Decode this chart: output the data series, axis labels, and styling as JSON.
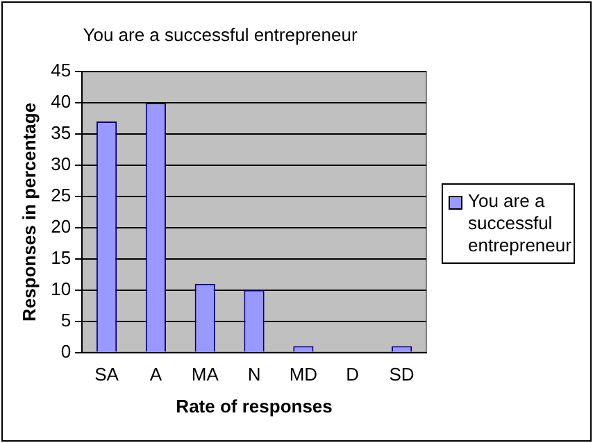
{
  "chart_data": {
    "type": "bar",
    "title": "You are a successful entrepreneur",
    "xlabel": "Rate of responses",
    "ylabel": "Responses in percentage",
    "categories": [
      "SA",
      "A",
      "MA",
      "N",
      "MD",
      "D",
      "SD"
    ],
    "series": [
      {
        "name": "You are a successful entrepreneur",
        "color": "#9999ff",
        "values": [
          37,
          40,
          11,
          10,
          1,
          0,
          1
        ]
      }
    ],
    "ylim": [
      0,
      45
    ],
    "yticks": [
      0,
      5,
      10,
      15,
      20,
      25,
      30,
      35,
      40,
      45
    ],
    "grid": "y",
    "legend": "right"
  }
}
